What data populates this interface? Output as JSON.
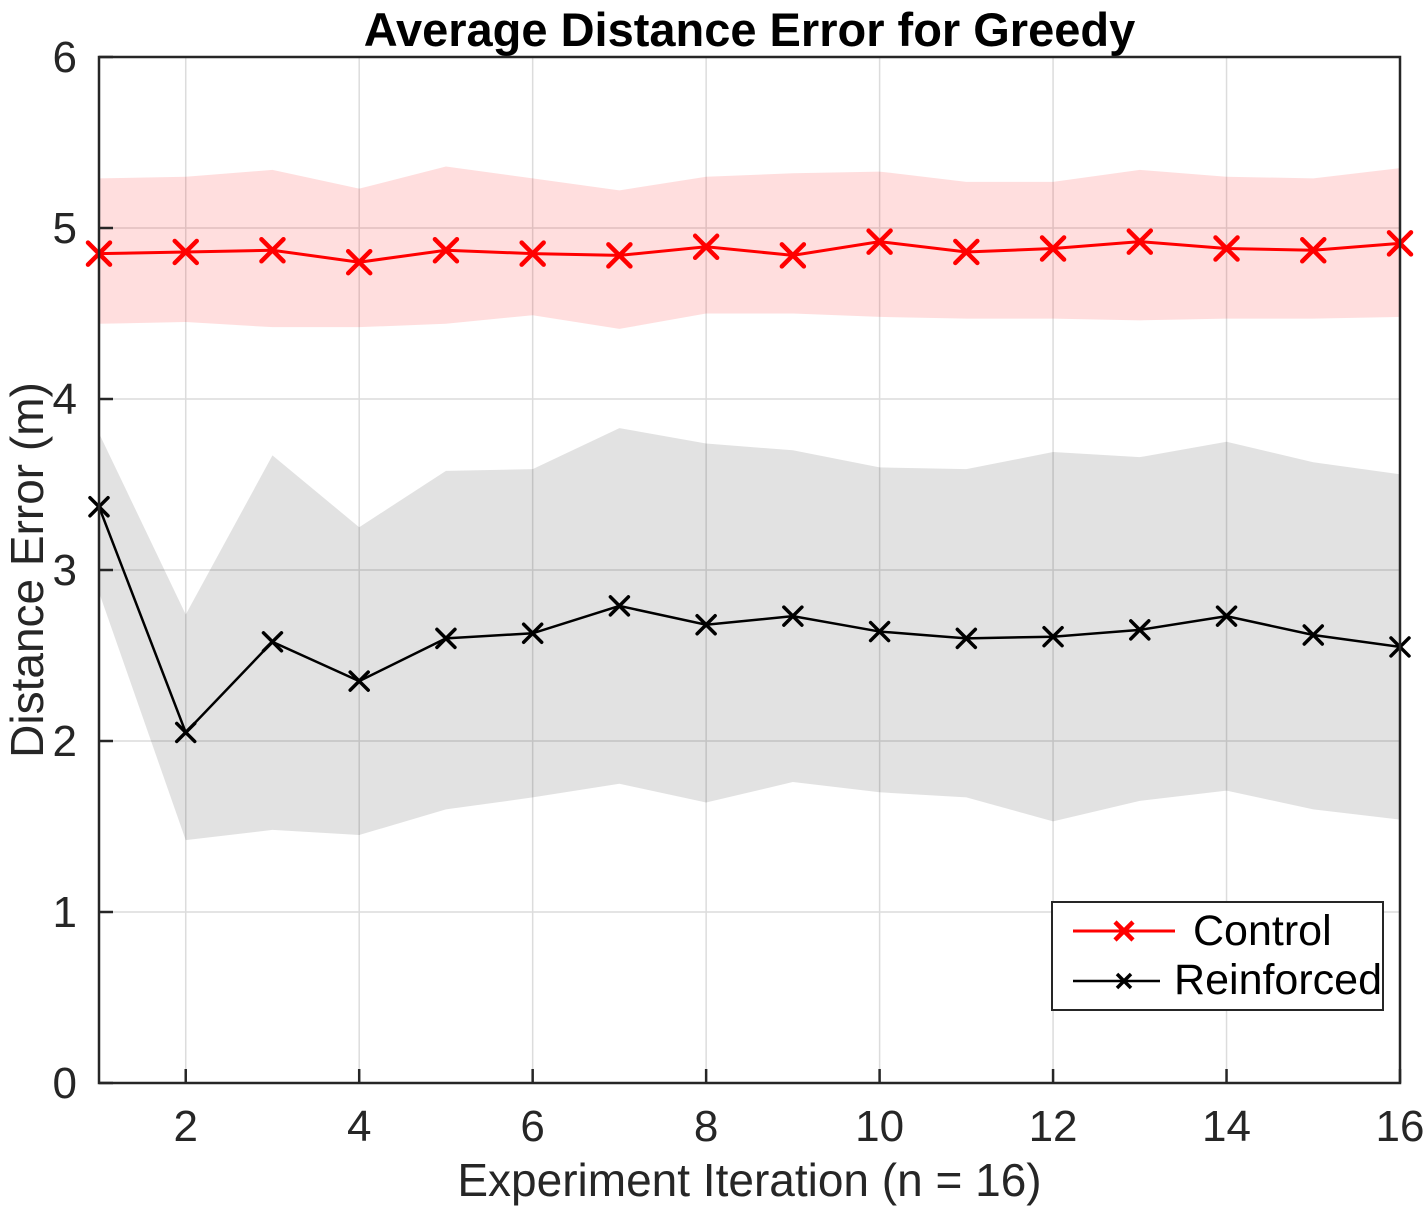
{
  "chart_data": {
    "type": "line",
    "title": "Average Distance Error for Greedy",
    "xlabel": "Experiment Iteration (n = 16)",
    "ylabel": "Distance Error (m)",
    "xlim": [
      1,
      16
    ],
    "ylim": [
      0,
      6
    ],
    "xticks": [
      2,
      4,
      6,
      8,
      10,
      12,
      14,
      16
    ],
    "yticks": [
      0,
      1,
      2,
      3,
      4,
      5,
      6
    ],
    "grid": true,
    "grid_color": "#dcdcdc",
    "axis_color": "#262626",
    "legend_position": "bottom-right",
    "x": [
      1,
      2,
      3,
      4,
      5,
      6,
      7,
      8,
      9,
      10,
      11,
      12,
      13,
      14,
      15,
      16
    ],
    "series": [
      {
        "name": "Control",
        "color": "#ff0000",
        "band_color": "rgba(255,0,0,0.13)",
        "marker": "x",
        "line_width": 3,
        "marker_half": 11,
        "marker_stroke_width": 4.5,
        "values": [
          4.85,
          4.86,
          4.87,
          4.8,
          4.87,
          4.85,
          4.84,
          4.89,
          4.84,
          4.92,
          4.86,
          4.88,
          4.92,
          4.88,
          4.87,
          4.91
        ],
        "band_upper": [
          5.29,
          5.3,
          5.34,
          5.23,
          5.36,
          5.29,
          5.22,
          5.3,
          5.32,
          5.33,
          5.27,
          5.27,
          5.34,
          5.3,
          5.29,
          5.35
        ],
        "band_lower": [
          4.44,
          4.45,
          4.42,
          4.42,
          4.44,
          4.49,
          4.41,
          4.5,
          4.5,
          4.48,
          4.47,
          4.47,
          4.46,
          4.47,
          4.47,
          4.48
        ]
      },
      {
        "name": "Reinforced",
        "color": "#000000",
        "band_color": "rgba(0,0,0,0.115)",
        "marker": "x",
        "line_width": 2.5,
        "marker_half": 9,
        "marker_stroke_width": 3.5,
        "values": [
          3.37,
          2.05,
          2.58,
          2.35,
          2.6,
          2.63,
          2.79,
          2.68,
          2.73,
          2.64,
          2.6,
          2.61,
          2.65,
          2.73,
          2.62,
          2.55
        ],
        "band_upper": [
          3.8,
          2.74,
          3.67,
          3.25,
          3.58,
          3.59,
          3.83,
          3.74,
          3.7,
          3.6,
          3.59,
          3.69,
          3.66,
          3.75,
          3.63,
          3.56
        ],
        "band_lower": [
          2.87,
          1.42,
          1.48,
          1.45,
          1.6,
          1.67,
          1.75,
          1.64,
          1.76,
          1.7,
          1.67,
          1.53,
          1.65,
          1.71,
          1.6,
          1.54
        ]
      }
    ]
  },
  "legend": {
    "items": [
      {
        "label": "Control",
        "color": "#ff0000"
      },
      {
        "label": "Reinforced",
        "color": "#000000"
      }
    ]
  }
}
